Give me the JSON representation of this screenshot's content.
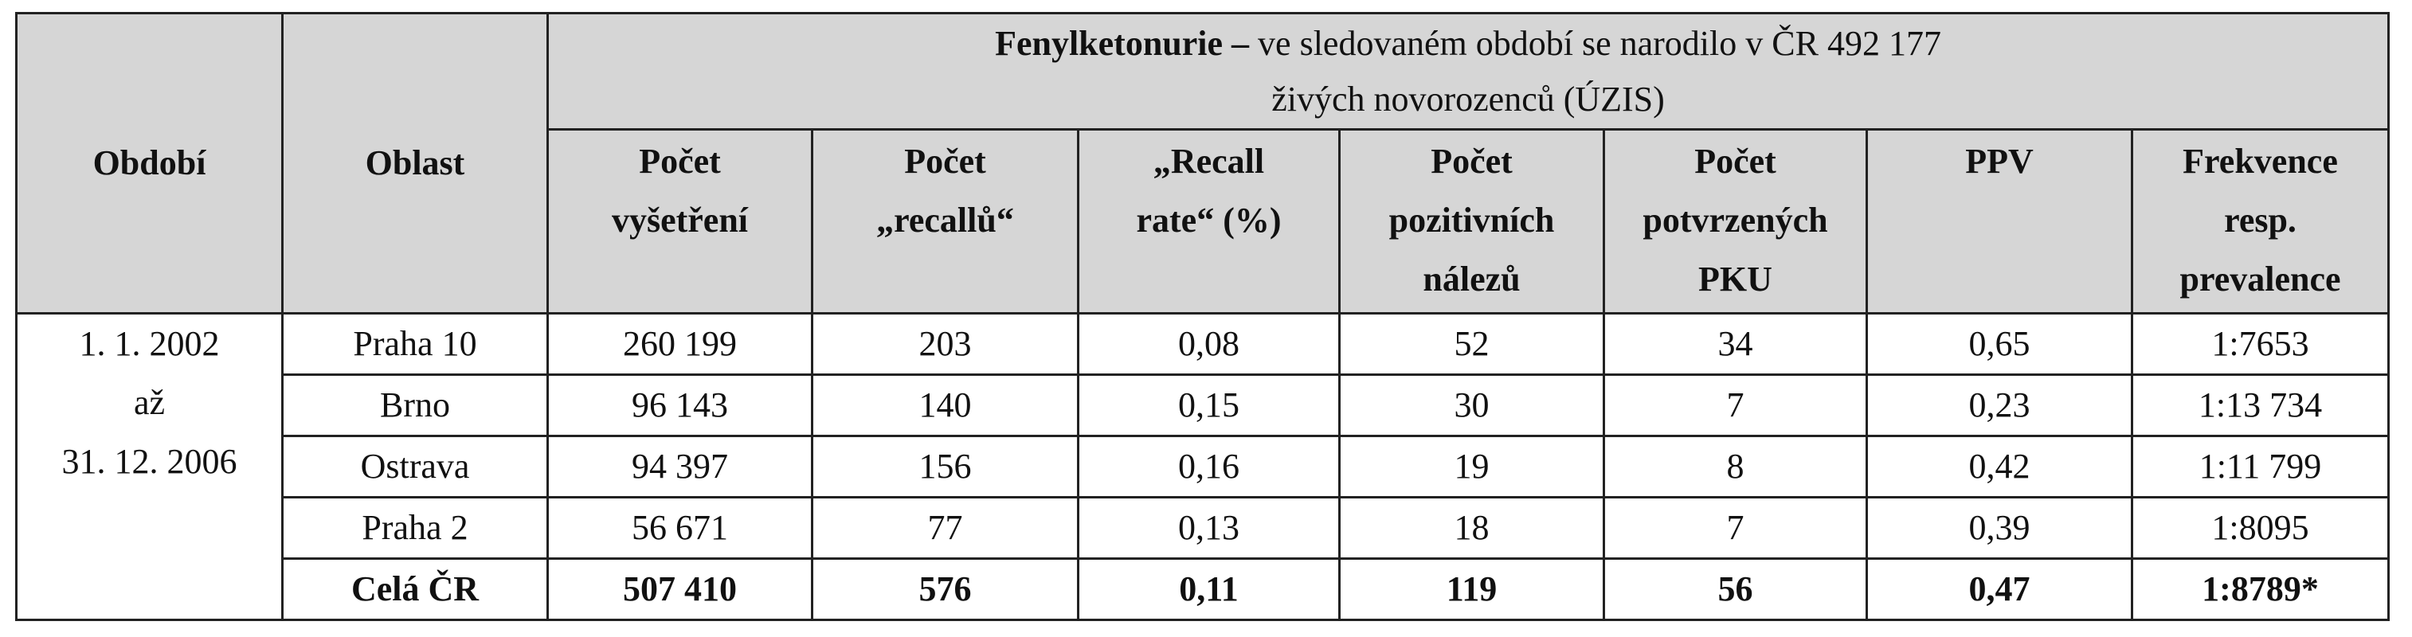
{
  "table": {
    "title_bold": "Fenylketonurie –",
    "title_line1": "ve sledovaném období se narodilo v ČR 492 177",
    "title_line2": "živých novorozenců (ÚZIS)",
    "side_headers": [
      "Období",
      "Oblast"
    ],
    "columns": [
      [
        "Počet",
        "vyšetření"
      ],
      [
        "Počet",
        "„recallů“"
      ],
      [
        "„Recall",
        "rate“ (%)"
      ],
      [
        "Počet",
        "pozitivních",
        "nálezů"
      ],
      [
        "Počet",
        "potvrzených",
        "PKU"
      ],
      [
        "PPV"
      ],
      [
        "Frekvence",
        "resp.",
        "prevalence"
      ]
    ],
    "period": [
      "1. 1. 2002",
      "až",
      "31. 12. 2006"
    ],
    "rows": [
      [
        "Praha 10",
        "260 199",
        "203",
        "0,08",
        "52",
        "34",
        "0,65",
        "1:7653"
      ],
      [
        "Brno",
        "96 143",
        "140",
        "0,15",
        "30",
        "7",
        "0,23",
        "1:13 734"
      ],
      [
        "Ostrava",
        "94 397",
        "156",
        "0,16",
        "19",
        "8",
        "0,42",
        "1:11 799"
      ],
      [
        "Praha 2",
        "56 671",
        "77",
        "0,13",
        "18",
        "7",
        "0,39",
        "1:8095"
      ],
      [
        "Celá ČR",
        "507 410",
        "576",
        "0,11",
        "119",
        "56",
        "0,47",
        "1:8789*"
      ]
    ]
  }
}
